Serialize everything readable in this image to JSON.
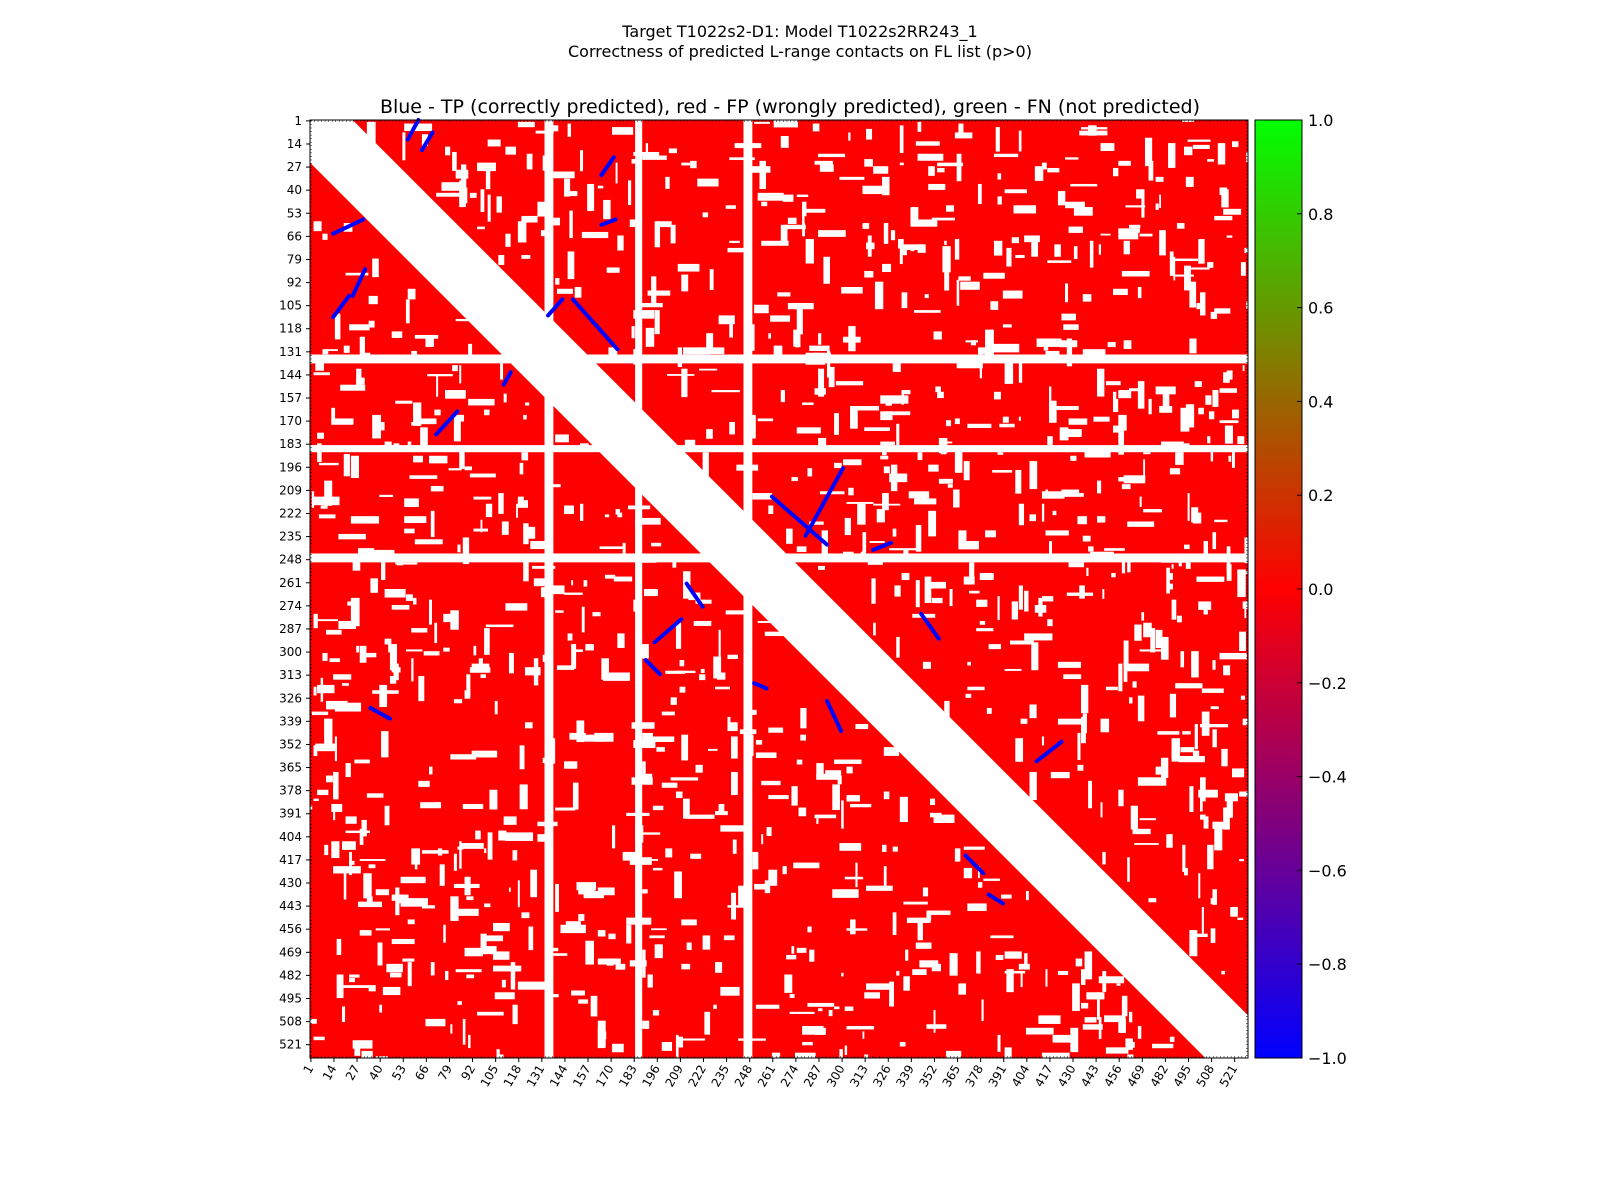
{
  "chart_data": {
    "type": "heatmap",
    "suptitle_line1": "Target T1022s2-D1: Model T1022s2RR243_1",
    "suptitle_line2": "Correctness of predicted L-range contacts on FL list (p>0)",
    "title": "Blue - TP (correctly predicted), red - FP (wrongly predicted), green - FN (not predicted)",
    "xlabel": "",
    "ylabel": "",
    "n_residues": 528,
    "tick_labels": [
      "1",
      "14",
      "27",
      "40",
      "53",
      "66",
      "79",
      "92",
      "105",
      "118",
      "131",
      "144",
      "157",
      "170",
      "183",
      "196",
      "209",
      "222",
      "235",
      "248",
      "261",
      "274",
      "287",
      "300",
      "313",
      "326",
      "339",
      "352",
      "365",
      "378",
      "391",
      "404",
      "417",
      "430",
      "443",
      "456",
      "469",
      "482",
      "495",
      "508",
      "521"
    ],
    "gap_residues": [
      [
        133,
        137
      ],
      [
        184,
        187
      ],
      [
        245,
        249
      ]
    ],
    "diagonal_excluded_band": 24,
    "value_meaning": {
      "blue": -1,
      "red": 0,
      "green": 1
    },
    "colorbar": {
      "range": [
        -1.0,
        1.0
      ],
      "ticks": [
        "1.0",
        "0.8",
        "0.6",
        "0.4",
        "0.2",
        "0.0",
        "−0.2",
        "−0.4",
        "−0.6",
        "−0.8",
        "−1.0"
      ],
      "colormap": [
        "#0000ff",
        "#ff0000",
        "#00ff00"
      ]
    },
    "tp_segments": [
      [
        1,
        62,
        12,
        56
      ],
      [
        57,
        31,
        65,
        14
      ],
      [
        100,
        23,
        112,
        14
      ],
      [
        18,
        64,
        8,
        70
      ],
      [
        85,
        32,
        100,
        25
      ],
      [
        102,
        143,
        111,
        135
      ],
      [
        165,
        84,
        178,
        72
      ],
      [
        57,
        173,
        60,
        165
      ],
      [
        102,
        149,
        130,
        174
      ],
      [
        22,
        172,
        32,
        165
      ],
      [
        143,
        114,
        150,
        110
      ],
      [
        197,
        301,
        235,
        280
      ],
      [
        213,
        261,
        240,
        292
      ],
      [
        262,
        213,
        275,
        222
      ],
      [
        282,
        210,
        295,
        195
      ],
      [
        305,
        190,
        313,
        198
      ],
      [
        318,
        251,
        321,
        258
      ],
      [
        332,
        35,
        338,
        46
      ],
      [
        328,
        292,
        345,
        300
      ],
      [
        279,
        345,
        293,
        355
      ],
      [
        351,
        424,
        362,
        410
      ],
      [
        415,
        370,
        425,
        380
      ],
      [
        437,
        383,
        442,
        391
      ],
      [
        239,
        328,
        243,
        318
      ]
    ]
  }
}
